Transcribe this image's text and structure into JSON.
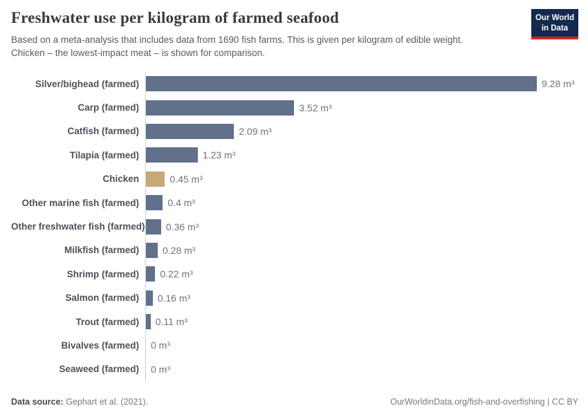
{
  "header": {
    "title": "Freshwater use per kilogram of farmed seafood",
    "subtitle_line1": "Based on a meta-analysis that includes data from 1690 fish farms. This is given per kilogram of edible weight.",
    "subtitle_line2": "Chicken – the lowest-impact meat – is shown for comparison.",
    "logo": {
      "line1": "Our World",
      "line2": "in Data"
    }
  },
  "chart_data": {
    "type": "bar",
    "orientation": "horizontal",
    "title": "Freshwater use per kilogram of farmed seafood",
    "unit": "m³",
    "xlabel": "",
    "ylabel": "",
    "xlim": [
      0,
      9.28
    ],
    "grid": false,
    "legend": false,
    "categories": [
      "Silver/bighead (farmed)",
      "Carp (farmed)",
      "Catfish (farmed)",
      "Tilapia (farmed)",
      "Chicken",
      "Other marine fish (farmed)",
      "Other freshwater fish (farmed)",
      "Milkfish (farmed)",
      "Shrimp (farmed)",
      "Salmon (farmed)",
      "Trout (farmed)",
      "Bivalves (farmed)",
      "Seaweed (farmed)"
    ],
    "values": [
      9.28,
      3.52,
      2.09,
      1.23,
      0.45,
      0.4,
      0.36,
      0.28,
      0.22,
      0.16,
      0.11,
      0,
      0
    ],
    "rows": [
      {
        "label": "Silver/bighead (farmed)",
        "value": 9.28,
        "value_display": "9.28 m³",
        "highlight": false
      },
      {
        "label": "Carp (farmed)",
        "value": 3.52,
        "value_display": "3.52 m³",
        "highlight": false
      },
      {
        "label": "Catfish (farmed)",
        "value": 2.09,
        "value_display": "2.09 m³",
        "highlight": false
      },
      {
        "label": "Tilapia (farmed)",
        "value": 1.23,
        "value_display": "1.23 m³",
        "highlight": false
      },
      {
        "label": "Chicken",
        "value": 0.45,
        "value_display": "0.45 m³",
        "highlight": true
      },
      {
        "label": "Other marine fish (farmed)",
        "value": 0.4,
        "value_display": "0.4 m³",
        "highlight": false
      },
      {
        "label": "Other freshwater fish (farmed)",
        "value": 0.36,
        "value_display": "0.36 m³",
        "highlight": false
      },
      {
        "label": "Milkfish (farmed)",
        "value": 0.28,
        "value_display": "0.28 m³",
        "highlight": false
      },
      {
        "label": "Shrimp (farmed)",
        "value": 0.22,
        "value_display": "0.22 m³",
        "highlight": false
      },
      {
        "label": "Salmon (farmed)",
        "value": 0.16,
        "value_display": "0.16 m³",
        "highlight": false
      },
      {
        "label": "Trout (farmed)",
        "value": 0.11,
        "value_display": "0.11 m³",
        "highlight": false
      },
      {
        "label": "Bivalves (farmed)",
        "value": 0,
        "value_display": "0 m³",
        "highlight": false
      },
      {
        "label": "Seaweed (farmed)",
        "value": 0,
        "value_display": "0 m³",
        "highlight": false
      }
    ],
    "bar_color": "#61708b",
    "highlight_color": "#c9a878",
    "axis_color": "#c9ced4"
  },
  "footer": {
    "source_label": "Data source:",
    "source_value": "Gephart et al. (2021).",
    "right_text": "OurWorldinData.org/fish-and-overfishing | CC BY"
  }
}
